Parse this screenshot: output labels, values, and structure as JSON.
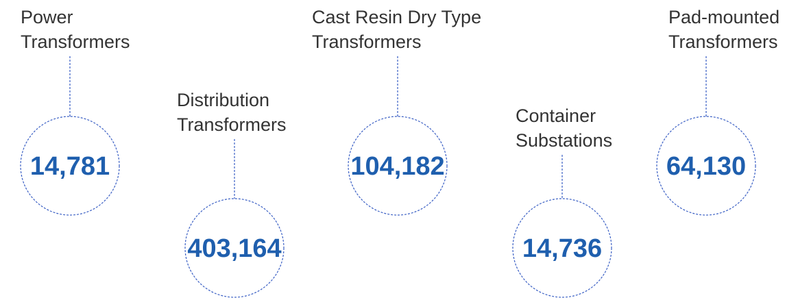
{
  "items": [
    {
      "label_lines": [
        "Power",
        "Transformers"
      ],
      "value": "14,781"
    },
    {
      "label_lines": [
        "Distribution",
        "Transformers"
      ],
      "value": "403,164"
    },
    {
      "label_lines": [
        "Cast Resin Dry Type",
        "Transformers"
      ],
      "value": "104,182"
    },
    {
      "label_lines": [
        "Container",
        "Substations"
      ],
      "value": "14,736"
    },
    {
      "label_lines": [
        "Pad-mounted",
        "Transformers"
      ],
      "value": "64,130"
    }
  ]
}
